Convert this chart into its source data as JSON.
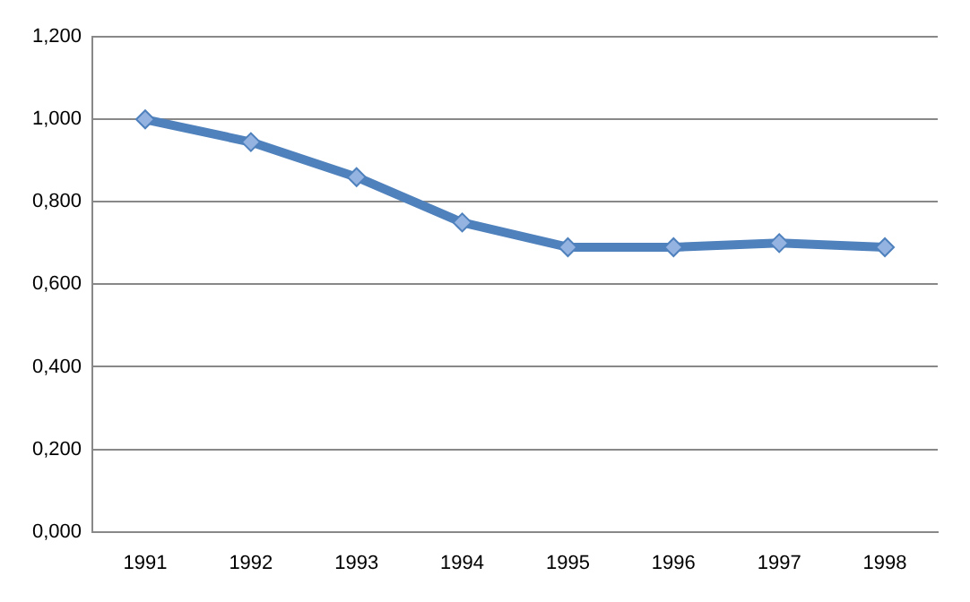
{
  "chart_data": {
    "type": "line",
    "categories": [
      "1991",
      "1992",
      "1993",
      "1994",
      "1995",
      "1996",
      "1997",
      "1998"
    ],
    "series": [
      {
        "color": "#4f81bd",
        "values": [
          1.0,
          0.945,
          0.86,
          0.75,
          0.69,
          0.69,
          0.7,
          0.69
        ]
      }
    ],
    "ylim": [
      0,
      1.2
    ],
    "yticks": [
      {
        "value": 0,
        "label": "0,000"
      },
      {
        "value": 0.2,
        "label": "0,200"
      },
      {
        "value": 0.4,
        "label": "0,400"
      },
      {
        "value": 0.6,
        "label": "0,600"
      },
      {
        "value": 0.8,
        "label": "0,800"
      },
      {
        "value": 1.0,
        "label": "1,000"
      },
      {
        "value": 1.2,
        "label": "1,200"
      }
    ],
    "grid": "y",
    "legend": false,
    "marker": "diamond",
    "line_style": "solid"
  }
}
